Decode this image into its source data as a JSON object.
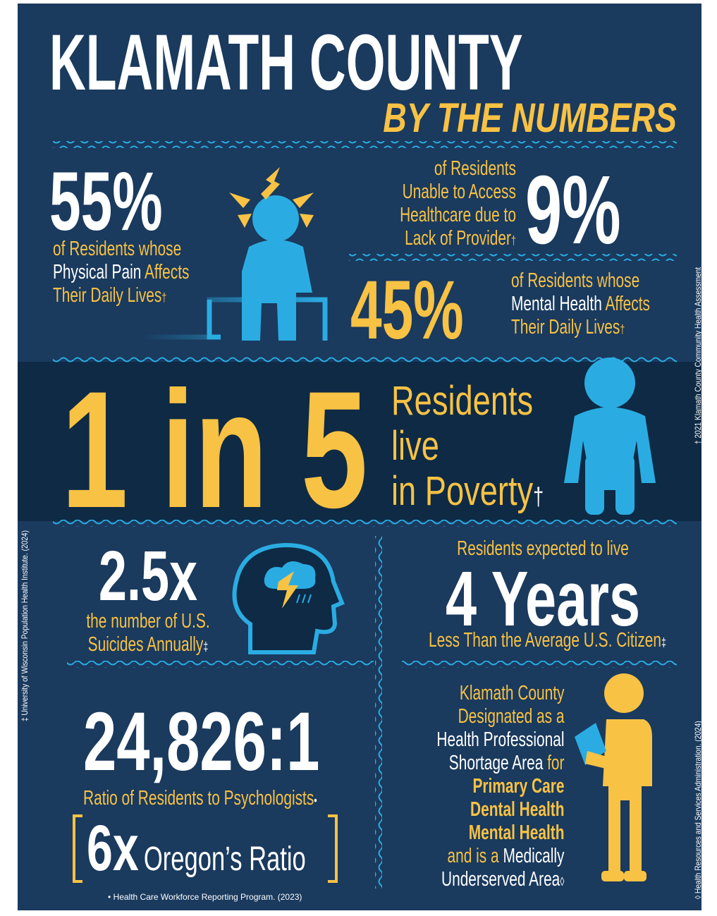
{
  "header": {
    "title": "KLAMATH COUNTY",
    "subtitle": "BY THE NUMBERS"
  },
  "pain": {
    "figure": "55%",
    "text": [
      "of Residents whose",
      "Physical Pain",
      "Affects",
      "Their Daily Lives",
      "†"
    ]
  },
  "access": {
    "figure": "9%",
    "text": [
      "of Residents",
      "Unable to Access",
      "Healthcare due to",
      "Lack of Provider",
      "†"
    ]
  },
  "mental": {
    "figure": "45%",
    "text": [
      "of Residents whose",
      "Mental Health",
      "Affects",
      "Their Daily Lives",
      "†"
    ]
  },
  "poverty": {
    "figure": "1 in 5",
    "text": [
      "Residents",
      "live",
      "in Poverty",
      "†"
    ]
  },
  "suicide": {
    "figure": "2.5x",
    "text": [
      "the number of U.S.",
      "Suicides Annually",
      "‡"
    ]
  },
  "life": {
    "intro": "Residents expected to live",
    "figure": "4 Years",
    "text": "Less Than the Average U.S. Citizen",
    "mark": "‡"
  },
  "ratio": {
    "figure": "24,826:1",
    "text": "Ratio of Residents to Psychologists",
    "mark": "•",
    "compare_figure": "6x",
    "compare_text": "Oregon’s Ratio",
    "footnote": "• Health Care Workforce Reporting Program. (2023)"
  },
  "shortage": {
    "lines": [
      "Klamath County",
      "Designated as a",
      "Health Professional",
      "Shortage Area",
      "for",
      "Primary Care",
      "Dental Health",
      "Mental Health",
      "and is a",
      "Medically",
      "Underserved Area",
      "◊"
    ]
  },
  "sources": [
    "† 2021 Klamath County Community Health Assessment",
    "‡ University of Wisconsin Population Health Institute. (2024)",
    "◊ Health Resources and Services Administration. (2024)"
  ]
}
